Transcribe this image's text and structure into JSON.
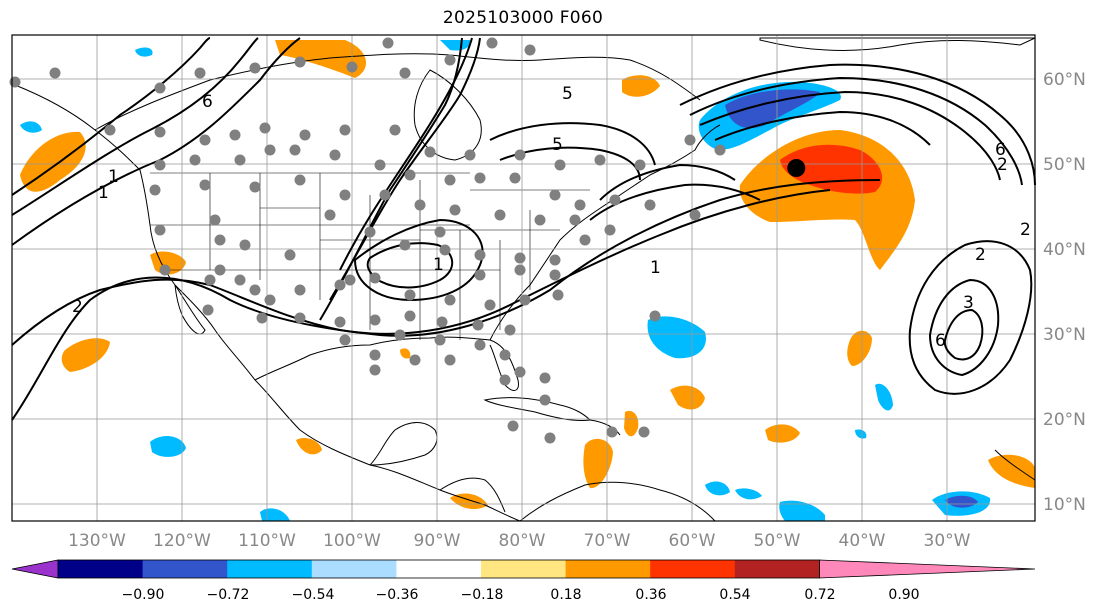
{
  "title": "2025103000 F060",
  "map": {
    "lon_range": [
      -140,
      -20
    ],
    "lat_range": [
      8,
      65
    ],
    "lon_ticks": [
      "130°W",
      "120°W",
      "110°W",
      "100°W",
      "90°W",
      "80°W",
      "70°W",
      "60°W",
      "50°W",
      "40°W",
      "30°W"
    ],
    "lat_ticks": [
      "10°N",
      "20°N",
      "30°N",
      "40°N",
      "50°N",
      "60°N"
    ],
    "contour_labels": [
      "6",
      "2",
      "1",
      "1",
      "1",
      "2",
      "3",
      "6",
      "5",
      "5",
      "6",
      "2",
      "2",
      "1"
    ],
    "marker": {
      "lon": -48.0,
      "lat": 49.5,
      "color": "#000000"
    }
  },
  "colorbar": {
    "colors": [
      "#9933cc",
      "#000088",
      "#3355cc",
      "#00bbff",
      "#aaddff",
      "#ffffff",
      "#ffe680",
      "#ff9900",
      "#ff3300",
      "#b22222",
      "#ff88bb"
    ],
    "labels": [
      "−0.90",
      "−0.72",
      "−0.54",
      "−0.36",
      "−0.18",
      "0.18",
      "0.36",
      "0.54",
      "0.72",
      "0.90"
    ]
  }
}
